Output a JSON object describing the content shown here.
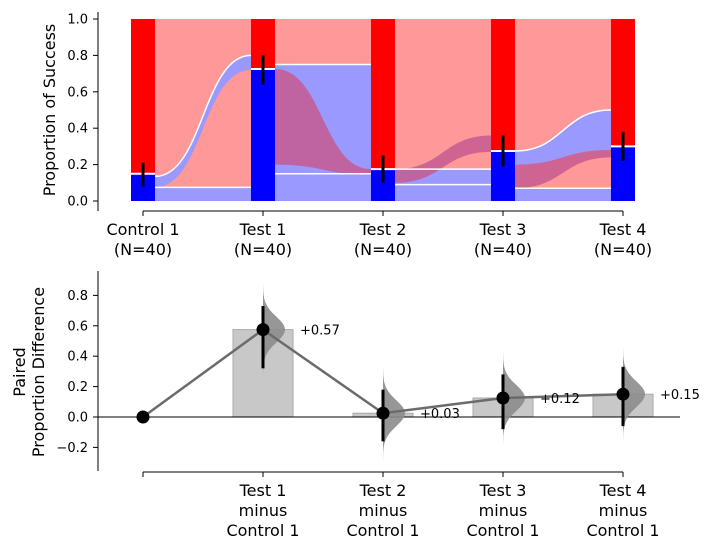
{
  "chart_data": [
    {
      "type": "bar",
      "subtype": "stacked-proportion-sankey",
      "ylabel": "Proportion of Success",
      "ylim": [
        0,
        1
      ],
      "yticks": [
        "0.0",
        "0.2",
        "0.4",
        "0.6",
        "0.8",
        "1.0"
      ],
      "categories": [
        {
          "name": "Control 1",
          "n": "(N=40)"
        },
        {
          "name": "Test 1",
          "n": "(N=40)"
        },
        {
          "name": "Test 2",
          "n": "(N=40)"
        },
        {
          "name": "Test 3",
          "n": "(N=40)"
        },
        {
          "name": "Test 4",
          "n": "(N=40)"
        }
      ],
      "series": [
        {
          "values": [
            0.15,
            0.725,
            0.175,
            0.275,
            0.3
          ],
          "color": "#0000ff"
        },
        {
          "values": [
            0.85,
            0.275,
            0.825,
            0.725,
            0.7
          ],
          "color": "#ff0000"
        }
      ],
      "error_bars": [
        [
          0.08,
          0.21
        ],
        [
          0.64,
          0.8
        ],
        [
          0.1,
          0.25
        ],
        [
          0.19,
          0.36
        ],
        [
          0.22,
          0.38
        ]
      ],
      "flow_colors": {
        "success": "#9999ff",
        "failure": "#ff9999",
        "cross": "#c65b8f"
      }
    },
    {
      "type": "bar",
      "subtype": "paired-difference-estimation",
      "ylabel": [
        "Paired",
        "Proportion Difference"
      ],
      "ylim": [
        -0.35,
        0.95
      ],
      "yticks": [
        "−0.2",
        "0.0",
        "0.2",
        "0.4",
        "0.6",
        "0.8"
      ],
      "categories": [
        {
          "name": "",
          "line2": "",
          "line3": ""
        },
        {
          "name": "Test 1",
          "line2": "minus",
          "line3": "Control 1"
        },
        {
          "name": "Test 2",
          "line2": "minus",
          "line3": "Control 1"
        },
        {
          "name": "Test 3",
          "line2": "minus",
          "line3": "Control 1"
        },
        {
          "name": "Test 4",
          "line2": "minus",
          "line3": "Control 1"
        }
      ],
      "values": [
        0,
        0.575,
        0.025,
        0.125,
        0.15
      ],
      "labels": [
        "",
        "+0.57",
        "+0.03",
        "+0.12",
        "+0.15"
      ],
      "ci": [
        null,
        [
          0.32,
          0.73
        ],
        [
          -0.16,
          0.18
        ],
        [
          -0.08,
          0.28
        ],
        [
          -0.06,
          0.33
        ]
      ],
      "bar_color": "#c8c8c8",
      "dist_color": "#8c8c8c"
    }
  ]
}
